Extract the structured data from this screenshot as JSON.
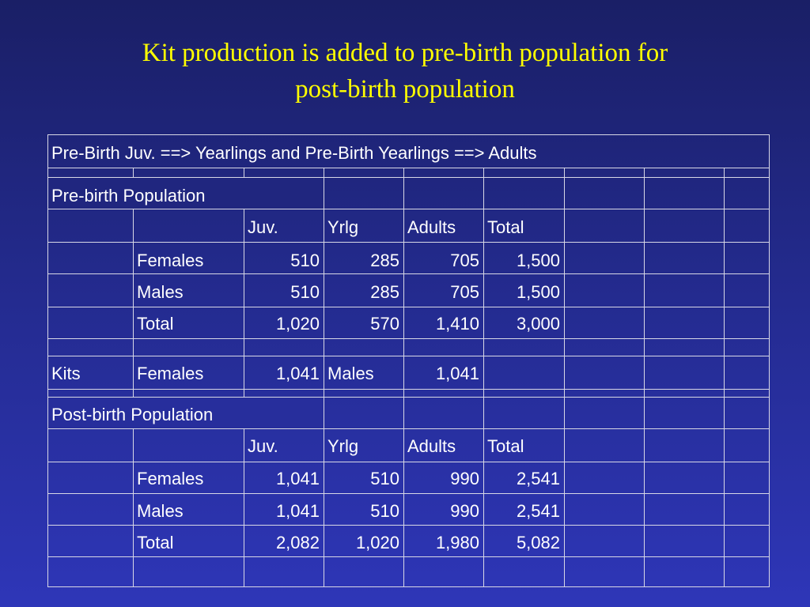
{
  "title": {
    "line1": "Kit production is added to pre-birth population for",
    "line2": "post-birth population"
  },
  "table": {
    "header": "Pre-Birth Juv. ==> Yearlings and Pre-Birth Yearlings ==> Adults",
    "pre_birth": {
      "label": "Pre-birth Population",
      "columns": [
        "Juv.",
        "Yrlg",
        "Adults",
        "Total"
      ],
      "rows": [
        {
          "label": "Females",
          "values": [
            "510",
            "285",
            "705",
            "1,500"
          ]
        },
        {
          "label": "Males",
          "values": [
            "510",
            "285",
            "705",
            "1,500"
          ]
        },
        {
          "label": "Total",
          "values": [
            "1,020",
            "570",
            "1,410",
            "3,000"
          ]
        }
      ]
    },
    "kits": {
      "label": "Kits",
      "females_label": "Females",
      "females_value": "1,041",
      "males_label": "Males",
      "males_value": "1,041"
    },
    "post_birth": {
      "label": "Post-birth Population",
      "columns": [
        "Juv.",
        "Yrlg",
        "Adults",
        "Total"
      ],
      "rows": [
        {
          "label": "Females",
          "values": [
            "1,041",
            "510",
            "990",
            "2,541"
          ]
        },
        {
          "label": "Males",
          "values": [
            "1,041",
            "510",
            "990",
            "2,541"
          ]
        },
        {
          "label": "Total",
          "values": [
            "2,082",
            "1,020",
            "1,980",
            "5,082"
          ]
        }
      ]
    }
  }
}
